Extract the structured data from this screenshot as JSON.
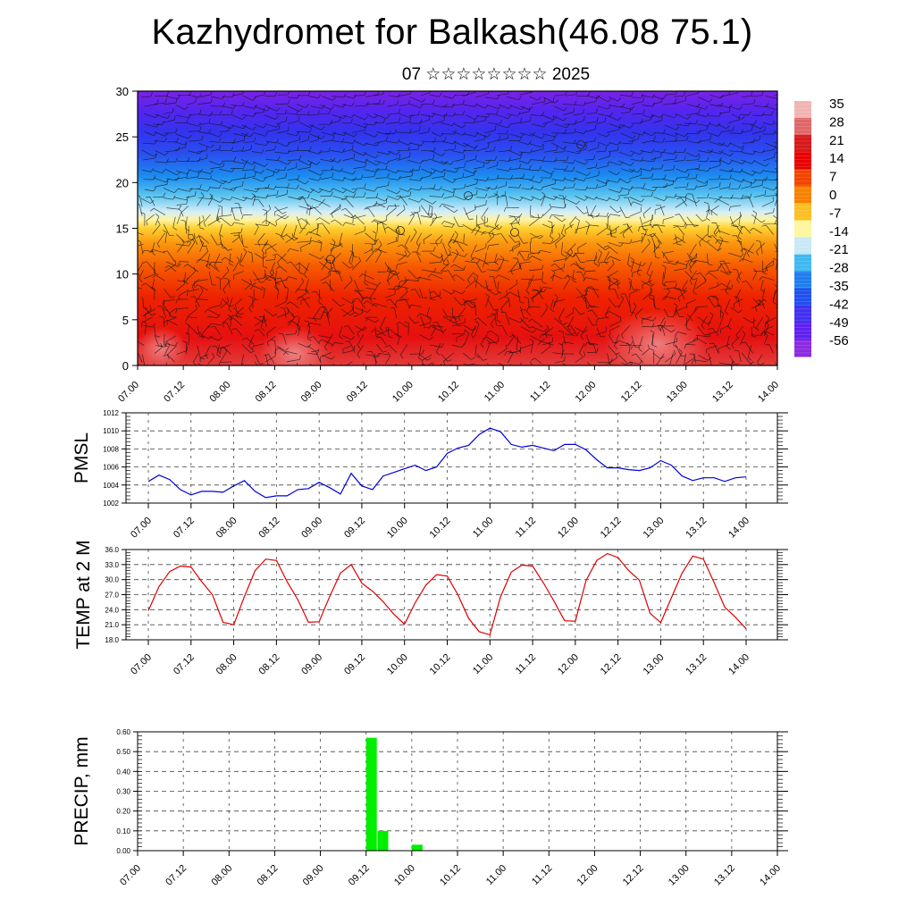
{
  "title": "Kazhydromet for Balkash(46.08 75.1)",
  "subtitle": "07 ☆☆☆☆☆☆☆☆ 2025",
  "time_labels": [
    "07.00",
    "07.12",
    "08.00",
    "08.12",
    "09.00",
    "09.12",
    "10.00",
    "10.12",
    "11.00",
    "11.12",
    "12.00",
    "12.12",
    "13.00",
    "13.12",
    "14.00"
  ],
  "colors": {
    "pmsl_line": "#0000dd",
    "temp_line": "#dd0000",
    "precip_bar": "#00ee00",
    "gridline": "#444444"
  },
  "chart_data": [
    {
      "type": "heatmap",
      "ylabel": "",
      "ylim": [
        0,
        30
      ],
      "yticks": [
        "0",
        "5",
        "10",
        "15",
        "20",
        "25",
        "30"
      ],
      "colorbar": {
        "labels": [
          "35",
          "28",
          "21",
          "14",
          "7",
          "0",
          "-7",
          "-14",
          "-21",
          "-28",
          "-35",
          "-42",
          "-49",
          "-56"
        ],
        "colors": [
          "#f2b3b3",
          "#e06666",
          "#d81818",
          "#e80000",
          "#f24400",
          "#f88000",
          "#fdbe22",
          "#fff6a0",
          "#c8e8f4",
          "#40b8ef",
          "#1e7ef0",
          "#2050f0",
          "#4030f0",
          "#6020f0",
          "#8a2be2"
        ]
      }
    },
    {
      "type": "line",
      "ylabel": "PMSL",
      "ylim": [
        1002,
        1012
      ],
      "yticks": [
        "1002",
        "1004",
        "1006",
        "1008",
        "1010",
        "1012"
      ],
      "x_hours": [
        0,
        3,
        6,
        9,
        12,
        15,
        18,
        21,
        24,
        27,
        30,
        33,
        36,
        39,
        42,
        45,
        48,
        51,
        54,
        57,
        60,
        63,
        66,
        69,
        72,
        75,
        78,
        81,
        84,
        87,
        90,
        93,
        96,
        99,
        102,
        105,
        108,
        111,
        114,
        117,
        120,
        123,
        126,
        129,
        132,
        135,
        138,
        141,
        144,
        147,
        150,
        153,
        156,
        159,
        162,
        165,
        168
      ],
      "values": [
        1004.4,
        1005.1,
        1004.6,
        1003.5,
        1002.9,
        1003.3,
        1003.3,
        1003.2,
        1003.9,
        1004.5,
        1003.3,
        1002.6,
        1002.8,
        1002.8,
        1003.5,
        1003.6,
        1004.3,
        1003.7,
        1003.0,
        1005.3,
        1003.9,
        1003.5,
        1005.0,
        1005.4,
        1005.8,
        1006.2,
        1005.6,
        1006.0,
        1007.5,
        1008.1,
        1008.4,
        1009.6,
        1010.3,
        1009.9,
        1008.5,
        1008.2,
        1008.4,
        1008.1,
        1007.8,
        1008.5,
        1008.5,
        1007.9,
        1006.8,
        1005.9,
        1005.9,
        1005.7,
        1005.6,
        1005.9,
        1006.7,
        1006.2,
        1005.0,
        1004.5,
        1004.8,
        1004.8,
        1004.4,
        1004.8,
        1004.9
      ]
    },
    {
      "type": "line",
      "ylabel": "TEMP at 2 M",
      "ylim": [
        18.0,
        36.0
      ],
      "yticks": [
        "18.0",
        "21.0",
        "24.0",
        "27.0",
        "30.0",
        "33.0",
        "36.0"
      ],
      "x_hours": [
        0,
        3,
        6,
        9,
        12,
        15,
        18,
        21,
        24,
        27,
        30,
        33,
        36,
        39,
        42,
        45,
        48,
        51,
        54,
        57,
        60,
        63,
        66,
        69,
        72,
        75,
        78,
        81,
        84,
        87,
        90,
        93,
        96,
        99,
        102,
        105,
        108,
        111,
        114,
        117,
        120,
        123,
        126,
        129,
        132,
        135,
        138,
        141,
        144,
        147,
        150,
        153,
        156,
        159,
        162,
        165,
        168
      ],
      "values": [
        23.8,
        28.6,
        31.6,
        32.7,
        32.5,
        29.6,
        27.0,
        21.5,
        21.0,
        26.6,
        31.8,
        34.1,
        33.8,
        29.6,
        26.0,
        21.5,
        21.6,
        26.7,
        31.3,
        33.0,
        29.3,
        27.7,
        25.6,
        23.1,
        21.1,
        25.4,
        28.9,
        31.0,
        30.7,
        27.0,
        22.3,
        19.6,
        19.0,
        26.6,
        31.5,
        32.9,
        32.7,
        29.4,
        25.7,
        21.8,
        21.7,
        29.8,
        33.8,
        35.2,
        34.4,
        31.8,
        29.9,
        23.3,
        21.4,
        26.4,
        31.3,
        34.7,
        34.1,
        29.4,
        24.5,
        22.5,
        20.2
      ]
    },
    {
      "type": "bar",
      "ylabel": "PRECIP, mm",
      "ylim": [
        0,
        0.6
      ],
      "yticks": [
        "0.00",
        "0.10",
        "0.20",
        "0.30",
        "0.40",
        "0.50",
        "0.60"
      ],
      "x_hours": [
        60,
        63,
        72
      ],
      "values": [
        0.57,
        0.1,
        0.03
      ]
    }
  ]
}
